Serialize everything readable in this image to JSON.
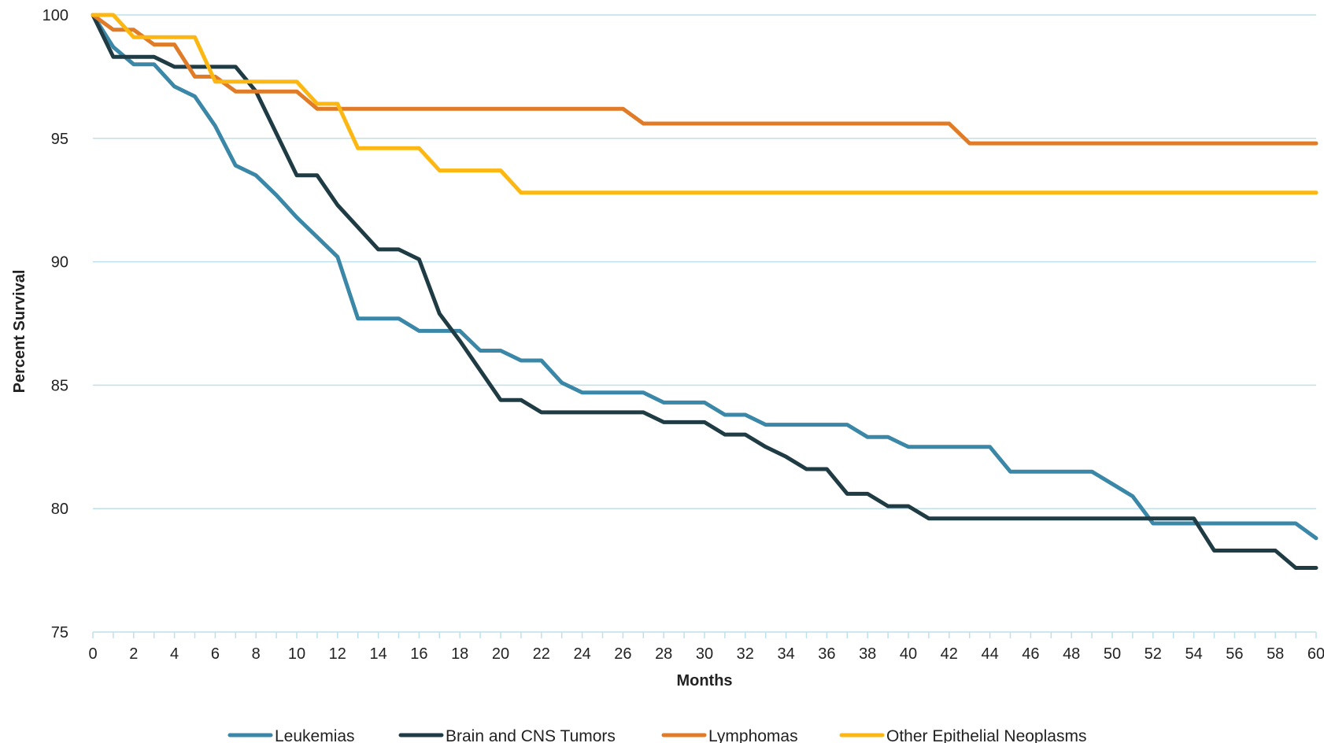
{
  "chart_data": {
    "type": "line",
    "title": "",
    "xlabel": "Months",
    "ylabel": "Percent Survival",
    "xlim": [
      0,
      60
    ],
    "ylim": [
      75,
      100
    ],
    "x_ticks": [
      0,
      2,
      4,
      6,
      8,
      10,
      12,
      14,
      16,
      18,
      20,
      22,
      24,
      26,
      28,
      30,
      32,
      34,
      36,
      38,
      40,
      42,
      44,
      46,
      48,
      50,
      52,
      54,
      56,
      58,
      60
    ],
    "y_ticks": [
      75,
      80,
      85,
      90,
      95,
      100
    ],
    "grid": "horizontal",
    "legend_position": "bottom",
    "x": [
      0,
      1,
      2,
      3,
      4,
      5,
      6,
      7,
      8,
      9,
      10,
      11,
      12,
      13,
      14,
      15,
      16,
      17,
      18,
      19,
      20,
      21,
      22,
      23,
      24,
      25,
      26,
      27,
      28,
      29,
      30,
      31,
      32,
      33,
      34,
      35,
      36,
      37,
      38,
      39,
      40,
      41,
      42,
      43,
      44,
      45,
      46,
      47,
      48,
      49,
      50,
      51,
      52,
      53,
      54,
      55,
      56,
      57,
      58,
      59,
      60
    ],
    "series": [
      {
        "name": "Leukemias",
        "color": "#3a87a8",
        "values": [
          100,
          98.7,
          98.0,
          98.0,
          97.1,
          96.7,
          95.5,
          93.9,
          93.5,
          92.7,
          91.8,
          91.0,
          90.2,
          87.7,
          87.7,
          87.7,
          87.2,
          87.2,
          87.2,
          86.4,
          86.4,
          86.0,
          86.0,
          85.1,
          84.7,
          84.7,
          84.7,
          84.7,
          84.3,
          84.3,
          84.3,
          83.8,
          83.8,
          83.4,
          83.4,
          83.4,
          83.4,
          83.4,
          82.9,
          82.9,
          82.5,
          82.5,
          82.5,
          82.5,
          82.5,
          81.5,
          81.5,
          81.5,
          81.5,
          81.5,
          81.0,
          80.5,
          79.4,
          79.4,
          79.4,
          79.4,
          79.4,
          79.4,
          79.4,
          79.4,
          78.8
        ]
      },
      {
        "name": "Brain and CNS Tumors",
        "color": "#1f3b44",
        "values": [
          100,
          98.3,
          98.3,
          98.3,
          97.9,
          97.9,
          97.9,
          97.9,
          96.9,
          95.2,
          93.5,
          93.5,
          92.3,
          91.4,
          90.5,
          90.5,
          90.1,
          87.9,
          86.8,
          85.6,
          84.4,
          84.4,
          83.9,
          83.9,
          83.9,
          83.9,
          83.9,
          83.9,
          83.5,
          83.5,
          83.5,
          83.0,
          83.0,
          82.5,
          82.1,
          81.6,
          81.6,
          80.6,
          80.6,
          80.1,
          80.1,
          79.6,
          79.6,
          79.6,
          79.6,
          79.6,
          79.6,
          79.6,
          79.6,
          79.6,
          79.6,
          79.6,
          79.6,
          79.6,
          79.6,
          78.3,
          78.3,
          78.3,
          78.3,
          77.6,
          77.6
        ]
      },
      {
        "name": "Lymphomas",
        "color": "#e07b27",
        "values": [
          100,
          99.4,
          99.4,
          98.8,
          98.8,
          97.5,
          97.5,
          96.9,
          96.9,
          96.9,
          96.9,
          96.2,
          96.2,
          96.2,
          96.2,
          96.2,
          96.2,
          96.2,
          96.2,
          96.2,
          96.2,
          96.2,
          96.2,
          96.2,
          96.2,
          96.2,
          96.2,
          95.6,
          95.6,
          95.6,
          95.6,
          95.6,
          95.6,
          95.6,
          95.6,
          95.6,
          95.6,
          95.6,
          95.6,
          95.6,
          95.6,
          95.6,
          95.6,
          94.8,
          94.8,
          94.8,
          94.8,
          94.8,
          94.8,
          94.8,
          94.8,
          94.8,
          94.8,
          94.8,
          94.8,
          94.8,
          94.8,
          94.8,
          94.8,
          94.8,
          94.8
        ]
      },
      {
        "name": "Other Epithelial Neoplasms",
        "color": "#fcb712",
        "values": [
          100,
          100,
          99.1,
          99.1,
          99.1,
          99.1,
          97.3,
          97.3,
          97.3,
          97.3,
          97.3,
          96.4,
          96.4,
          94.6,
          94.6,
          94.6,
          94.6,
          93.7,
          93.7,
          93.7,
          93.7,
          92.8,
          92.8,
          92.8,
          92.8,
          92.8,
          92.8,
          92.8,
          92.8,
          92.8,
          92.8,
          92.8,
          92.8,
          92.8,
          92.8,
          92.8,
          92.8,
          92.8,
          92.8,
          92.8,
          92.8,
          92.8,
          92.8,
          92.8,
          92.8,
          92.8,
          92.8,
          92.8,
          92.8,
          92.8,
          92.8,
          92.8,
          92.8,
          92.8,
          92.8,
          92.8,
          92.8,
          92.8,
          92.8,
          92.8,
          92.8
        ]
      }
    ]
  }
}
